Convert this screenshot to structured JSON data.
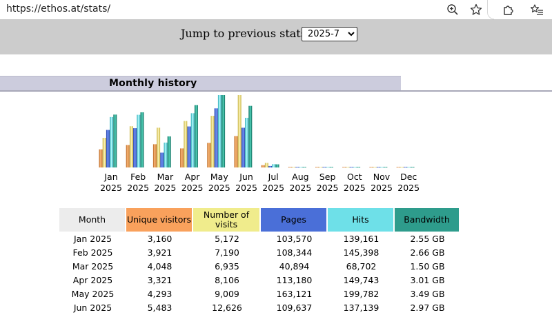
{
  "browser": {
    "url": "https://ethos.at/stats/",
    "icons": [
      "zoom-icon",
      "star-icon",
      "extensions-icon",
      "favorites-icon"
    ]
  },
  "jump": {
    "label": "Jump to previous stats:",
    "selected": "2025-7"
  },
  "history": {
    "title": "Monthly history"
  },
  "colors": {
    "uv": "#f9a15c",
    "nv": "#f0ec8c",
    "pages": "#4a6fd8",
    "hits": "#6ee0e8",
    "bandwidth": "#2e9c8c",
    "jump_bg": "#cccccc",
    "header_bg": "#ccccdd"
  },
  "table": {
    "headers": {
      "month": "Month",
      "uv": "Unique visitors",
      "nv": "Number of visits",
      "pages": "Pages",
      "hits": "Hits",
      "bandwidth": "Bandwidth"
    },
    "rows": [
      {
        "month": "Jan 2025",
        "uv": "3,160",
        "nv": "5,172",
        "pages": "103,570",
        "hits": "139,161",
        "bandwidth": "2.55 GB"
      },
      {
        "month": "Feb 2025",
        "uv": "3,921",
        "nv": "7,190",
        "pages": "108,344",
        "hits": "145,398",
        "bandwidth": "2.66 GB"
      },
      {
        "month": "Mar 2025",
        "uv": "4,048",
        "nv": "6,935",
        "pages": "40,894",
        "hits": "68,702",
        "bandwidth": "1.50 GB"
      },
      {
        "month": "Apr 2025",
        "uv": "3,321",
        "nv": "8,106",
        "pages": "113,180",
        "hits": "149,743",
        "bandwidth": "3.01 GB"
      },
      {
        "month": "May 2025",
        "uv": "4,293",
        "nv": "9,009",
        "pages": "163,121",
        "hits": "199,782",
        "bandwidth": "3.49 GB"
      },
      {
        "month": "Jun 2025",
        "uv": "5,483",
        "nv": "12,626",
        "pages": "109,637",
        "hits": "137,139",
        "bandwidth": "2.97 GB"
      }
    ]
  },
  "chart_data": {
    "type": "bar",
    "title": "Monthly history",
    "categories": [
      {
        "month": "Jan",
        "year": "2025"
      },
      {
        "month": "Feb",
        "year": "2025"
      },
      {
        "month": "Mar",
        "year": "2025"
      },
      {
        "month": "Apr",
        "year": "2025"
      },
      {
        "month": "May",
        "year": "2025"
      },
      {
        "month": "Jun",
        "year": "2025"
      },
      {
        "month": "Jul",
        "year": "2025"
      },
      {
        "month": "Aug",
        "year": "2025"
      },
      {
        "month": "Sep",
        "year": "2025"
      },
      {
        "month": "Oct",
        "year": "2025"
      },
      {
        "month": "Nov",
        "year": "2025"
      },
      {
        "month": "Dec",
        "year": "2025"
      }
    ],
    "series": [
      {
        "name": "Unique visitors",
        "values": [
          3160,
          3921,
          4048,
          3321,
          4293,
          5483,
          400,
          0,
          0,
          0,
          0,
          0
        ]
      },
      {
        "name": "Number of visits",
        "values": [
          5172,
          7190,
          6935,
          8106,
          9009,
          12626,
          800,
          0,
          0,
          0,
          0,
          0
        ]
      },
      {
        "name": "Pages",
        "values": [
          103570,
          108344,
          40894,
          113180,
          163121,
          109637,
          4000,
          0,
          0,
          0,
          0,
          0
        ]
      },
      {
        "name": "Hits",
        "values": [
          139161,
          145398,
          68702,
          149743,
          199782,
          137139,
          9000,
          0,
          0,
          0,
          0,
          0
        ]
      },
      {
        "name": "Bandwidth",
        "values": [
          2.55,
          2.66,
          1.5,
          3.01,
          3.49,
          2.97,
          0.15,
          0,
          0,
          0,
          0,
          0
        ]
      }
    ],
    "xlabel": "",
    "ylabel": ""
  }
}
